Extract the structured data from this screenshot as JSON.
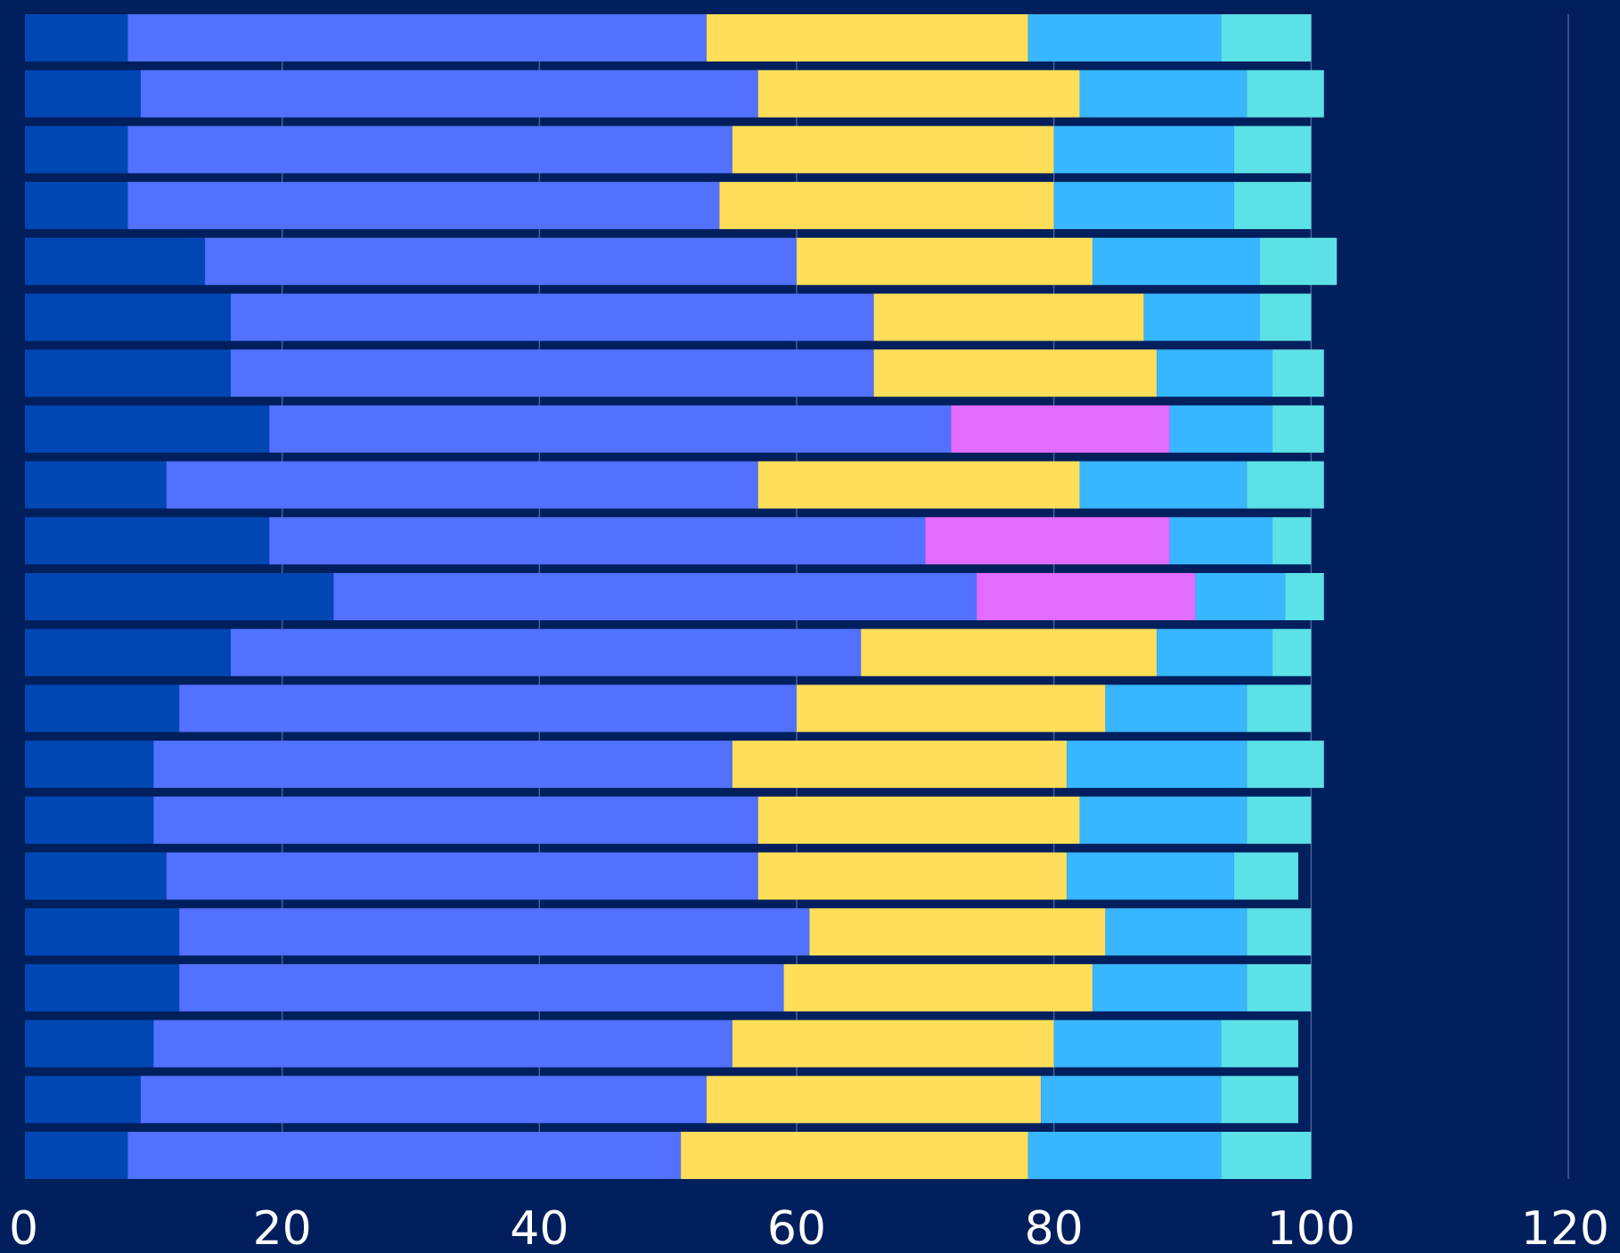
{
  "chart_data": {
    "type": "bar",
    "orientation": "horizontal",
    "stacked": true,
    "title": "",
    "xlabel": "",
    "ylabel": "",
    "xlim": [
      0,
      120
    ],
    "x_ticks": [
      0,
      20,
      40,
      60,
      80,
      100,
      120
    ],
    "x_tick_labels": [
      "0",
      "20",
      "40",
      "60",
      "80",
      "100",
      "120"
    ],
    "grid": "vertical",
    "legend": "none",
    "background": "#001f5c",
    "rows": 21,
    "series": [
      {
        "color": "#0047b3",
        "values": [
          8,
          9,
          8,
          8,
          14,
          16,
          16,
          19,
          11,
          19,
          24,
          16,
          12,
          10,
          10,
          11,
          12,
          12,
          10,
          9,
          8
        ]
      },
      {
        "color": "#5271ff",
        "values": [
          45,
          48,
          47,
          46,
          46,
          50,
          50,
          53,
          46,
          51,
          50,
          49,
          48,
          45,
          47,
          46,
          49,
          47,
          45,
          44,
          43
        ]
      },
      {
        "color": "#ffde59",
        "values": [
          25,
          25,
          25,
          26,
          23,
          21,
          22,
          0,
          25,
          0,
          0,
          23,
          24,
          26,
          25,
          24,
          23,
          24,
          25,
          26,
          27
        ]
      },
      {
        "color": "#e16cff",
        "values": [
          0,
          0,
          0,
          0,
          0,
          0,
          0,
          17,
          0,
          19,
          17,
          0,
          0,
          0,
          0,
          0,
          0,
          0,
          0,
          0,
          0
        ]
      },
      {
        "color": "#38b6ff",
        "values": [
          15,
          13,
          14,
          14,
          13,
          9,
          9,
          8,
          13,
          8,
          7,
          9,
          11,
          14,
          13,
          13,
          11,
          12,
          13,
          14,
          15
        ]
      },
      {
        "color": "#5ce1e6",
        "values": [
          7,
          6,
          6,
          6,
          6,
          4,
          4,
          4,
          6,
          3,
          3,
          3,
          5,
          6,
          5,
          5,
          5,
          5,
          6,
          6,
          7
        ]
      }
    ]
  }
}
